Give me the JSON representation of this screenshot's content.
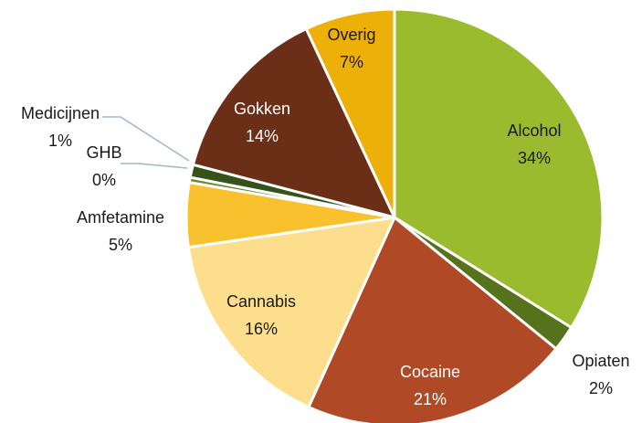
{
  "chart_data": {
    "type": "pie",
    "title": "",
    "slices": [
      {
        "label": "Alcohol",
        "value": 34,
        "pct_label": "34%",
        "color": "#9BBB2E",
        "text_color": "#1a1a1a"
      },
      {
        "label": "Opiaten",
        "value": 2,
        "pct_label": "2%",
        "color": "#57721C",
        "text_color": "#1a1a1a"
      },
      {
        "label": "Cocaine",
        "value": 21,
        "pct_label": "21%",
        "color": "#B04A26",
        "text_color": "#ffffff"
      },
      {
        "label": "Cannabis",
        "value": 16,
        "pct_label": "16%",
        "color": "#FDDE8D",
        "text_color": "#1a1a1a"
      },
      {
        "label": "Amfetamine",
        "value": 5,
        "pct_label": "5%",
        "color": "#F9C12E",
        "text_color": "#1a1a1a"
      },
      {
        "label": "GHB",
        "value": 0.4,
        "pct_label": "0%",
        "color": "#6D8A2A",
        "text_color": "#1a1a1a"
      },
      {
        "label": "Medicijnen",
        "value": 1,
        "pct_label": "1%",
        "color": "#36521A",
        "text_color": "#1a1a1a"
      },
      {
        "label": "Gokken",
        "value": 14,
        "pct_label": "14%",
        "color": "#6B2E17",
        "text_color": "#ffffff"
      },
      {
        "label": "Overig",
        "value": 7,
        "pct_label": "7%",
        "color": "#EDB008",
        "text_color": "#1a1a1a"
      }
    ],
    "leader_line_color": "#9DB7D0",
    "background": "#ffffff"
  }
}
